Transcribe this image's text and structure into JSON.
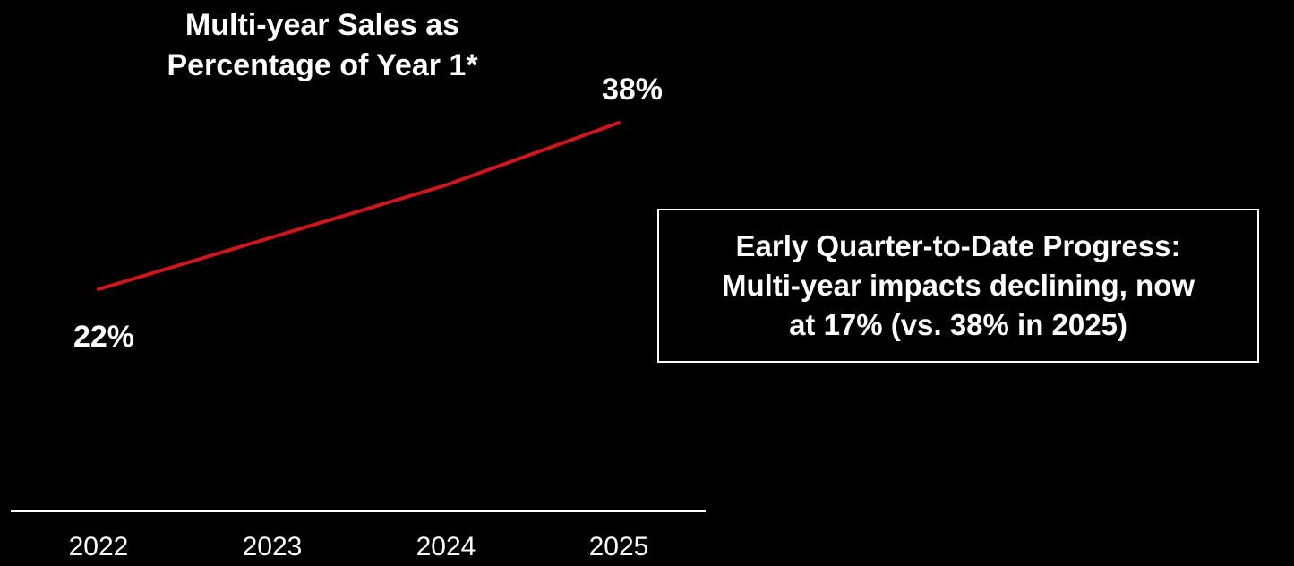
{
  "chart_data": {
    "type": "line",
    "title_lines": [
      "Multi-year Sales as",
      "Percentage of Year 1*"
    ],
    "categories": [
      "2022",
      "2023",
      "2024",
      "2025"
    ],
    "series": [
      {
        "values": [
          22,
          27,
          32,
          38
        ],
        "color": "#d0161c"
      }
    ],
    "data_labels": [
      {
        "index": 0,
        "text": "22%"
      },
      {
        "index": 3,
        "text": "38%"
      }
    ],
    "ylim": [
      0,
      40
    ],
    "grid": false,
    "legend": "none",
    "baseline_color": "#ffffff"
  },
  "callout": {
    "lines": [
      "Early Quarter-to-Date Progress:",
      "Multi-year impacts declining, now",
      "at 17% (vs. 38% in 2025)"
    ]
  }
}
